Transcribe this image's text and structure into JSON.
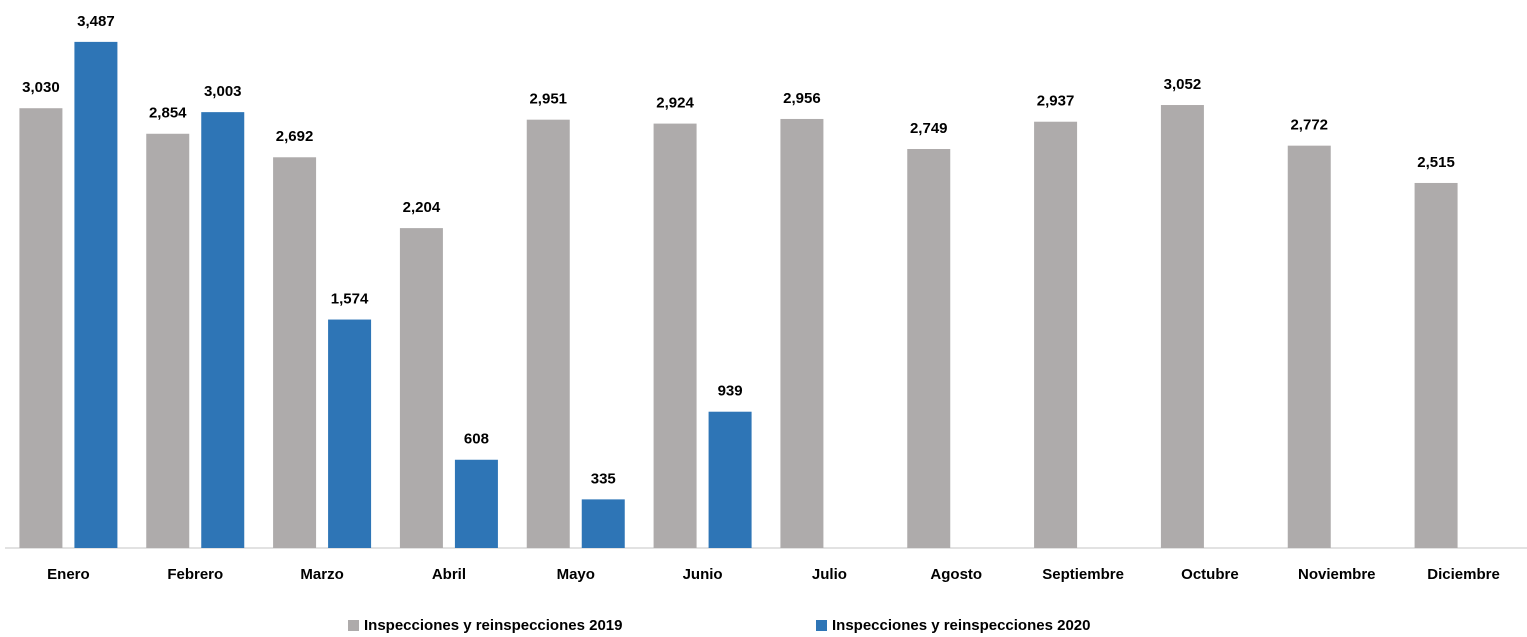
{
  "chart_data": {
    "type": "bar",
    "categories": [
      "Enero",
      "Febrero",
      "Marzo",
      "Abril",
      "Mayo",
      "Junio",
      "Julio",
      "Agosto",
      "Septiembre",
      "Octubre",
      "Noviembre",
      "Diciembre"
    ],
    "series": [
      {
        "name": "Inspecciones y reinspecciones 2019",
        "color": "#aeabab",
        "values": [
          3030,
          2854,
          2692,
          2204,
          2951,
          2924,
          2956,
          2749,
          2937,
          3052,
          2772,
          2515
        ],
        "value_labels": [
          "3,030",
          "2,854",
          "2,692",
          "2,204",
          "2,951",
          "2,924",
          "2,956",
          "2,749",
          "2,937",
          "3,052",
          "2,772",
          "2,515"
        ]
      },
      {
        "name": "Inspecciones y reinspecciones 2020",
        "color": "#2e75b6",
        "values": [
          3487,
          3003,
          1574,
          608,
          335,
          939,
          null,
          null,
          null,
          null,
          null,
          null
        ],
        "value_labels": [
          "3,487",
          "3,003",
          "1,574",
          "608",
          "335",
          "939",
          null,
          null,
          null,
          null,
          null,
          null
        ]
      }
    ],
    "ylim": [
      0,
      3500
    ],
    "legend": "bottom"
  }
}
